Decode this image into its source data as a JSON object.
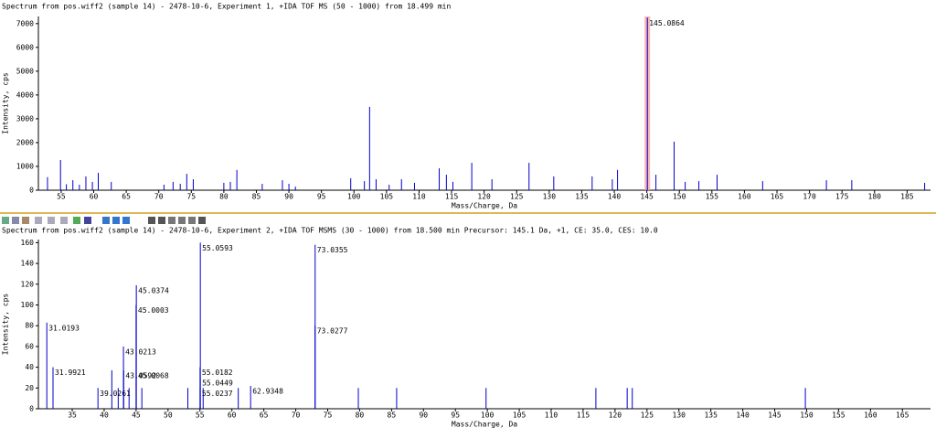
{
  "chart_data": [
    {
      "type": "stem",
      "title": "Spectrum from pos.wiff2 (sample 14) - 2478-10-6, Experiment 1, +IDA TOF MS (50 - 1000) from 18.499 min",
      "x_label": "Mass/Charge, Da",
      "y_label": "Intensity, cps",
      "x": [
        52.9,
        54.9,
        55.8,
        56.8,
        57.8,
        58.8,
        59.8,
        60.7,
        62.7,
        70.8,
        72.2,
        73.3,
        74.3,
        75.3,
        80.0,
        81.0,
        82.0,
        85.9,
        89.0,
        90.0,
        91.0,
        99.5,
        101.6,
        102.4,
        103.4,
        105.4,
        107.3,
        109.3,
        113.1,
        114.2,
        115.2,
        118.1,
        121.2,
        126.9,
        130.7,
        136.6,
        139.7,
        140.5,
        146.4,
        149.2,
        150.9,
        153.0,
        155.8,
        162.8,
        172.6,
        176.5,
        187.7
      ],
      "values": [
        550,
        1270,
        250,
        420,
        230,
        580,
        350,
        730,
        350,
        230,
        350,
        270,
        690,
        460,
        310,
        350,
        850,
        270,
        420,
        270,
        150,
        500,
        380,
        3500,
        460,
        230,
        460,
        310,
        920,
        650,
        350,
        1150,
        460,
        1150,
        580,
        580,
        460,
        850,
        650,
        2040,
        350,
        380,
        650,
        380,
        420,
        420,
        310
      ],
      "annotations": [
        {
          "x": 145.0864,
          "y": 7250
        }
      ],
      "highlight_color": "#f5a3a3",
      "color": "#0000cc",
      "xlim": [
        51.5,
        188.6
      ],
      "ylim": [
        0,
        7300
      ],
      "xticks": [
        55,
        60,
        65,
        70,
        75,
        80,
        85,
        90,
        95,
        100,
        105,
        110,
        115,
        120,
        125,
        130,
        135,
        140,
        145,
        150,
        155,
        160,
        165,
        170,
        175,
        180,
        185
      ],
      "yticks": [
        0,
        1000,
        2000,
        3000,
        4000,
        5000,
        6000,
        7000
      ]
    },
    {
      "type": "stem",
      "title": "Spectrum from pos.wiff2 (sample 14) - 2478-10-6, Experiment 2, +IDA TOF MSMS (30 - 1000) from 18.500 min Precursor: 145.1 Da, +1, CE: 35.0, CES: 10.0",
      "x_label": "Mass/Charge, Da",
      "y_label": "Intensity, cps",
      "x": [
        41.2,
        42.2,
        43.9,
        45.9,
        53.1,
        55.5,
        61.0,
        79.8,
        85.8,
        99.8,
        117.0,
        121.9,
        122.7,
        149.8
      ],
      "values": [
        37,
        20,
        20,
        20,
        20,
        20,
        20,
        20,
        20,
        20,
        20,
        20,
        20,
        20
      ],
      "annotations": [
        {
          "x": 31.0193,
          "y": 83
        },
        {
          "x": 31.9921,
          "y": 40
        },
        {
          "x": 39.0261,
          "y": 20
        },
        {
          "x": 43.0213,
          "y": 60
        },
        {
          "x": 43.0592,
          "y": 37
        },
        {
          "x": 45.0374,
          "y": 119
        },
        {
          "x": 45.0003,
          "y": 100
        },
        {
          "x": 45.0068,
          "y": 37
        },
        {
          "x": 55.0593,
          "y": 160
        },
        {
          "x": 55.0182,
          "y": 40
        },
        {
          "x": 55.0449,
          "y": 30
        },
        {
          "x": 55.0237,
          "y": 20
        },
        {
          "x": 62.9348,
          "y": 22
        },
        {
          "x": 73.0355,
          "y": 158
        },
        {
          "x": 73.0277,
          "y": 80
        }
      ],
      "color": "#0000cc",
      "xlim": [
        29.7,
        169.4
      ],
      "ylim": [
        0,
        163
      ],
      "xticks": [
        35,
        40,
        45,
        50,
        55,
        60,
        65,
        70,
        75,
        80,
        85,
        90,
        95,
        100,
        105,
        110,
        115,
        120,
        125,
        130,
        135,
        140,
        145,
        150,
        155,
        160,
        165
      ],
      "yticks": [
        0,
        20,
        40,
        60,
        80,
        100,
        120,
        140,
        160
      ]
    }
  ]
}
